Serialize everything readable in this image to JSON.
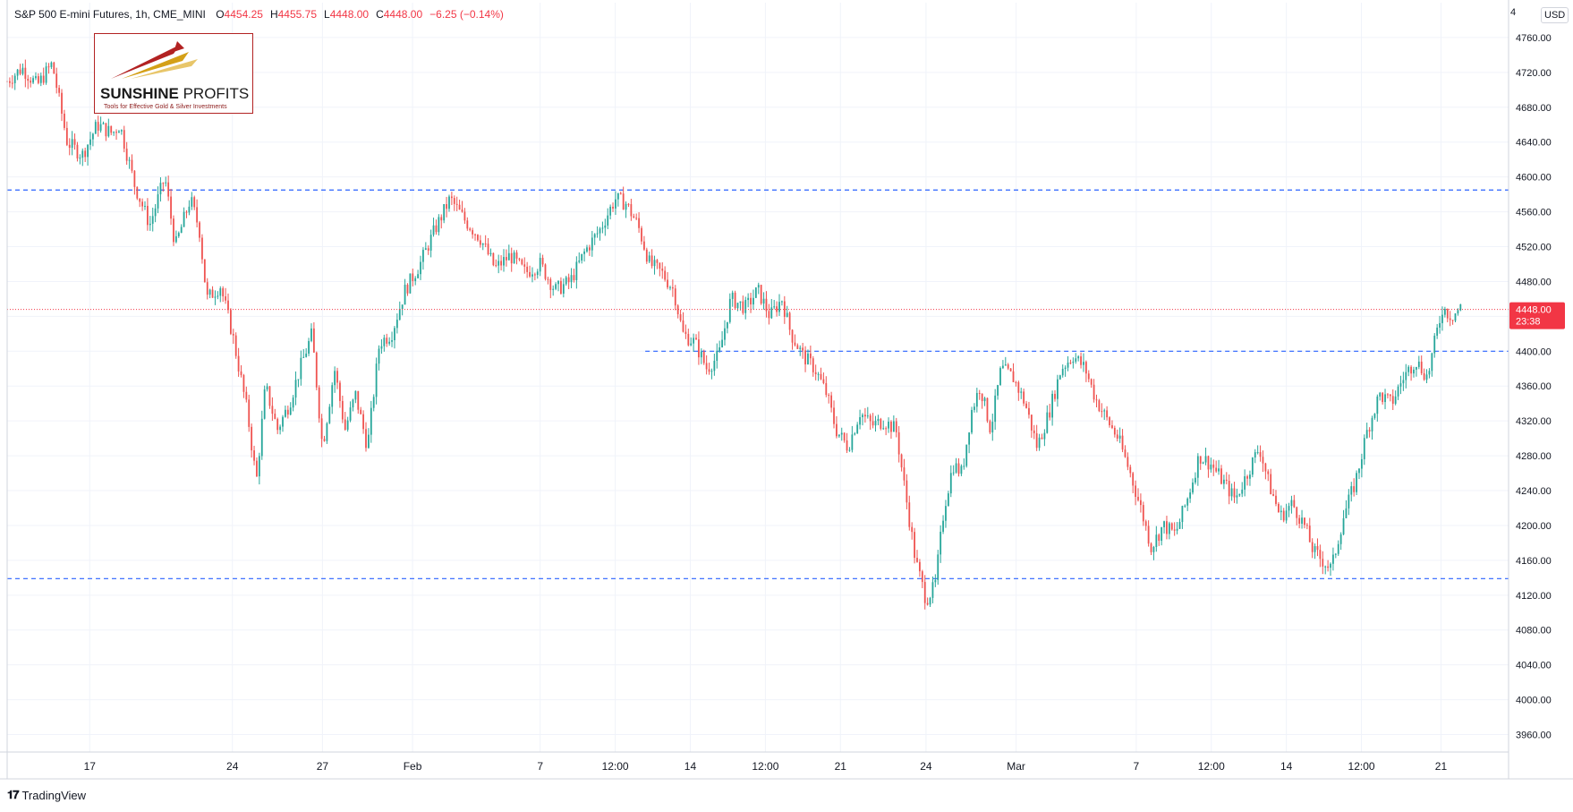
{
  "header": {
    "title": "S&P 500 E-mini Futures, 1h, CME_MINI",
    "o_label": "O",
    "o_value": "4454.25",
    "h_label": "H",
    "h_value": "4455.75",
    "l_label": "L",
    "l_value": "4448.00",
    "c_label": "C",
    "c_value": "4448.00",
    "change": "−6.25 (−0.14%)"
  },
  "logo": {
    "brand_bold": "SUNSHINE",
    "brand_thin": " PROFITS",
    "tagline": "Tools for Effective Gold & Silver Investments"
  },
  "currency": "USD",
  "top_axis_label": "4",
  "footer": {
    "brand": "TradingView",
    "icon": "tradingview-logo-icon"
  },
  "colors": {
    "up": "#26a69a",
    "down": "#ef5350",
    "level_line": "#2962ff",
    "price_line": "#f23645",
    "grid": "#f0f3fa"
  },
  "chart_data": {
    "type": "candlestick",
    "title": "S&P 500 E-mini Futures, 1h, CME_MINI",
    "ylim": [
      3940,
      4800
    ],
    "y_ticks": [
      3960,
      4000,
      4040,
      4080,
      4120,
      4160,
      4200,
      4240,
      4280,
      4320,
      4360,
      4400,
      4440,
      4480,
      4520,
      4560,
      4600,
      4640,
      4680,
      4720,
      4760
    ],
    "y_tick_labels": [
      "3960.00",
      "4000.00",
      "4040.00",
      "4080.00",
      "4120.00",
      "4160.00",
      "4200.00",
      "4240.00",
      "4280.00",
      "4320.00",
      "4360.00",
      "4400.00",
      "4440.00",
      "4480.00",
      "4520.00",
      "4560.00",
      "4600.00",
      "4640.00",
      "4680.00",
      "4720.00",
      "4760.00"
    ],
    "x_ticks": [
      {
        "label": "17",
        "x": 0.055
      },
      {
        "label": "24",
        "x": 0.15
      },
      {
        "label": "27",
        "x": 0.21
      },
      {
        "label": "Feb",
        "x": 0.27
      },
      {
        "label": "7",
        "x": 0.355
      },
      {
        "label": "12:00",
        "x": 0.405
      },
      {
        "label": "14",
        "x": 0.455
      },
      {
        "label": "12:00",
        "x": 0.505
      },
      {
        "label": "21",
        "x": 0.555
      },
      {
        "label": "24",
        "x": 0.612
      },
      {
        "label": "Mar",
        "x": 0.672
      },
      {
        "label": "7",
        "x": 0.752
      },
      {
        "label": "12:00",
        "x": 0.802
      },
      {
        "label": "14",
        "x": 0.852
      },
      {
        "label": "12:00",
        "x": 0.902
      },
      {
        "label": "21",
        "x": 0.955
      }
    ],
    "path_points": [
      [
        0.0,
        4710
      ],
      [
        0.01,
        4725
      ],
      [
        0.02,
        4705
      ],
      [
        0.03,
        4730
      ],
      [
        0.04,
        4640
      ],
      [
        0.05,
        4625
      ],
      [
        0.06,
        4660
      ],
      [
        0.07,
        4650
      ],
      [
        0.075,
        4660
      ],
      [
        0.085,
        4590
      ],
      [
        0.095,
        4545
      ],
      [
        0.105,
        4600
      ],
      [
        0.112,
        4520
      ],
      [
        0.122,
        4575
      ],
      [
        0.128,
        4540
      ],
      [
        0.133,
        4460
      ],
      [
        0.142,
        4475
      ],
      [
        0.15,
        4420
      ],
      [
        0.16,
        4330
      ],
      [
        0.166,
        4250
      ],
      [
        0.172,
        4360
      ],
      [
        0.18,
        4310
      ],
      [
        0.188,
        4340
      ],
      [
        0.195,
        4380
      ],
      [
        0.203,
        4420
      ],
      [
        0.21,
        4290
      ],
      [
        0.218,
        4380
      ],
      [
        0.225,
        4310
      ],
      [
        0.232,
        4350
      ],
      [
        0.24,
        4290
      ],
      [
        0.248,
        4410
      ],
      [
        0.256,
        4420
      ],
      [
        0.265,
        4470
      ],
      [
        0.275,
        4500
      ],
      [
        0.285,
        4540
      ],
      [
        0.295,
        4575
      ],
      [
        0.305,
        4550
      ],
      [
        0.315,
        4530
      ],
      [
        0.325,
        4495
      ],
      [
        0.335,
        4510
      ],
      [
        0.345,
        4490
      ],
      [
        0.355,
        4500
      ],
      [
        0.365,
        4470
      ],
      [
        0.375,
        4480
      ],
      [
        0.385,
        4515
      ],
      [
        0.395,
        4540
      ],
      [
        0.405,
        4575
      ],
      [
        0.412,
        4570
      ],
      [
        0.42,
        4545
      ],
      [
        0.428,
        4500
      ],
      [
        0.436,
        4490
      ],
      [
        0.444,
        4470
      ],
      [
        0.45,
        4420
      ],
      [
        0.458,
        4410
      ],
      [
        0.466,
        4380
      ],
      [
        0.474,
        4395
      ],
      [
        0.482,
        4460
      ],
      [
        0.492,
        4450
      ],
      [
        0.5,
        4470
      ],
      [
        0.508,
        4440
      ],
      [
        0.516,
        4460
      ],
      [
        0.522,
        4420
      ],
      [
        0.53,
        4395
      ],
      [
        0.538,
        4380
      ],
      [
        0.546,
        4350
      ],
      [
        0.552,
        4310
      ],
      [
        0.56,
        4290
      ],
      [
        0.568,
        4330
      ],
      [
        0.576,
        4315
      ],
      [
        0.584,
        4320
      ],
      [
        0.592,
        4310
      ],
      [
        0.598,
        4240
      ],
      [
        0.605,
        4160
      ],
      [
        0.612,
        4115
      ],
      [
        0.618,
        4130
      ],
      [
        0.624,
        4220
      ],
      [
        0.63,
        4270
      ],
      [
        0.636,
        4260
      ],
      [
        0.642,
        4330
      ],
      [
        0.648,
        4360
      ],
      [
        0.655,
        4310
      ],
      [
        0.662,
        4380
      ],
      [
        0.67,
        4370
      ],
      [
        0.678,
        4340
      ],
      [
        0.686,
        4290
      ],
      [
        0.694,
        4330
      ],
      [
        0.702,
        4380
      ],
      [
        0.71,
        4395
      ],
      [
        0.718,
        4380
      ],
      [
        0.725,
        4345
      ],
      [
        0.733,
        4320
      ],
      [
        0.74,
        4300
      ],
      [
        0.748,
        4260
      ],
      [
        0.755,
        4220
      ],
      [
        0.762,
        4175
      ],
      [
        0.77,
        4200
      ],
      [
        0.778,
        4190
      ],
      [
        0.786,
        4230
      ],
      [
        0.794,
        4280
      ],
      [
        0.802,
        4270
      ],
      [
        0.81,
        4250
      ],
      [
        0.818,
        4230
      ],
      [
        0.826,
        4260
      ],
      [
        0.834,
        4290
      ],
      [
        0.84,
        4250
      ],
      [
        0.848,
        4210
      ],
      [
        0.856,
        4225
      ],
      [
        0.864,
        4200
      ],
      [
        0.87,
        4170
      ],
      [
        0.876,
        4160
      ],
      [
        0.882,
        4150
      ],
      [
        0.89,
        4210
      ],
      [
        0.898,
        4250
      ],
      [
        0.906,
        4310
      ],
      [
        0.914,
        4350
      ],
      [
        0.922,
        4340
      ],
      [
        0.93,
        4370
      ],
      [
        0.938,
        4390
      ],
      [
        0.946,
        4370
      ],
      [
        0.952,
        4420
      ],
      [
        0.956,
        4450
      ],
      [
        0.962,
        4440
      ],
      [
        0.968,
        4450
      ]
    ],
    "levels": [
      {
        "name": "resistance-upper",
        "value": 4585,
        "x_start": 0.0
      },
      {
        "name": "resistance-mid",
        "value": 4400,
        "x_start": 0.425
      },
      {
        "name": "support-lower",
        "value": 4139,
        "x_start": 0.0
      }
    ],
    "current_price": {
      "value": 4448.0,
      "label": "4448.00",
      "countdown": "23:38"
    }
  }
}
